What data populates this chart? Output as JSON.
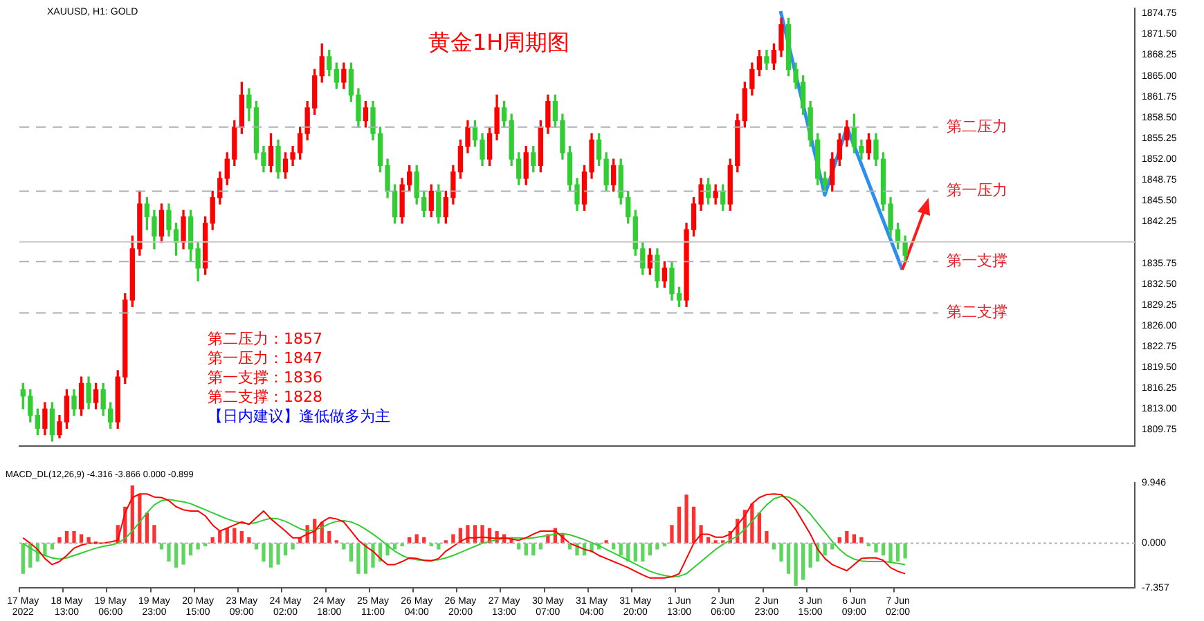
{
  "chart_data": [
    {
      "type": "candlestick",
      "title": "黄金1H周期图",
      "subtitle": "XAUUSD, H1: GOLD",
      "categories": [
        null,
        null,
        null,
        null,
        null,
        null,
        null,
        null,
        null,
        null,
        null,
        null,
        null,
        null,
        null,
        null,
        null,
        null,
        null,
        null,
        null,
        null,
        null,
        null,
        null,
        null,
        null,
        null,
        null,
        null,
        null,
        null,
        null,
        null,
        null,
        null,
        null,
        null,
        null,
        null,
        null,
        null,
        null,
        null,
        null,
        null,
        null,
        null,
        null,
        null,
        null,
        null,
        null,
        null,
        null,
        null,
        null,
        null,
        null,
        null,
        null,
        null,
        null,
        null,
        null,
        null,
        null,
        null,
        null,
        null,
        null,
        null,
        null,
        null,
        null,
        null,
        null,
        null,
        null,
        null,
        null,
        null,
        null,
        null,
        null,
        null,
        null,
        null,
        null,
        null,
        null,
        null,
        null,
        null,
        null,
        null,
        null,
        null,
        null,
        null,
        null,
        null,
        null,
        null,
        null,
        null,
        null,
        null,
        null,
        null,
        null,
        null,
        null,
        null,
        null,
        null,
        null,
        null,
        null,
        null,
        null,
        null,
        null,
        null,
        null,
        null,
        null,
        null,
        null,
        null,
        null,
        null,
        null,
        null,
        null,
        null,
        null,
        null,
        null,
        null,
        null,
        null,
        null,
        null,
        null,
        null,
        null,
        null,
        null,
        null,
        null,
        null,
        null
      ],
      "ohlc": [
        [
          1816,
          1817,
          1813,
          1815
        ],
        [
          1815,
          1816,
          1811,
          1812
        ],
        [
          1812,
          1813,
          1809,
          1810
        ],
        [
          1810,
          1814,
          1809,
          1813
        ],
        [
          1813,
          1814,
          1808,
          1809
        ],
        [
          1809,
          1812,
          1808.5,
          1811
        ],
        [
          1811,
          1816,
          1810,
          1815
        ],
        [
          1815,
          1816,
          1812,
          1813
        ],
        [
          1813,
          1818,
          1812,
          1817
        ],
        [
          1817,
          1818,
          1813,
          1814
        ],
        [
          1814,
          1817,
          1813,
          1816
        ],
        [
          1816,
          1817,
          1812,
          1813
        ],
        [
          1813,
          1814,
          1810,
          1811
        ],
        [
          1811,
          1819,
          1810,
          1818
        ],
        [
          1818,
          1831,
          1817,
          1830
        ],
        [
          1830,
          1840,
          1829,
          1838
        ],
        [
          1838,
          1847,
          1837,
          1845
        ],
        [
          1845,
          1846,
          1841,
          1843
        ],
        [
          1843,
          1844,
          1838,
          1840
        ],
        [
          1840,
          1845,
          1839,
          1844
        ],
        [
          1844,
          1845,
          1840,
          1841
        ],
        [
          1841,
          1842,
          1837,
          1839
        ],
        [
          1839,
          1844,
          1838,
          1843
        ],
        [
          1843,
          1844,
          1836,
          1838
        ],
        [
          1838,
          1839,
          1833,
          1835
        ],
        [
          1835,
          1843,
          1834,
          1842
        ],
        [
          1842,
          1847,
          1841,
          1846
        ],
        [
          1846,
          1850,
          1845,
          1849
        ],
        [
          1849,
          1853,
          1848,
          1852
        ],
        [
          1852,
          1858,
          1851,
          1857
        ],
        [
          1857,
          1864,
          1856,
          1862
        ],
        [
          1862,
          1863,
          1858,
          1860
        ],
        [
          1860,
          1861,
          1852,
          1853
        ],
        [
          1853,
          1854,
          1850,
          1851
        ],
        [
          1851,
          1856,
          1850,
          1854
        ],
        [
          1854,
          1855,
          1849,
          1850
        ],
        [
          1850,
          1853,
          1849,
          1852
        ],
        [
          1852,
          1854,
          1851,
          1853
        ],
        [
          1853,
          1857,
          1852,
          1856
        ],
        [
          1856,
          1861,
          1855,
          1860
        ],
        [
          1860,
          1866,
          1859,
          1865
        ],
        [
          1865,
          1870,
          1864,
          1868
        ],
        [
          1868,
          1869,
          1865,
          1866
        ],
        [
          1866,
          1867,
          1863,
          1864
        ],
        [
          1864,
          1867,
          1863,
          1866
        ],
        [
          1866,
          1867,
          1861,
          1862
        ],
        [
          1862,
          1863,
          1857,
          1858
        ],
        [
          1858,
          1861,
          1857,
          1860
        ],
        [
          1860,
          1861,
          1855,
          1856
        ],
        [
          1856,
          1857,
          1850,
          1851
        ],
        [
          1851,
          1852,
          1846,
          1847
        ],
        [
          1847,
          1848,
          1842,
          1843
        ],
        [
          1843,
          1849,
          1842,
          1848
        ],
        [
          1848,
          1851,
          1847,
          1850
        ],
        [
          1850,
          1851,
          1845,
          1846
        ],
        [
          1846,
          1847,
          1843,
          1844
        ],
        [
          1844,
          1848,
          1843,
          1847
        ],
        [
          1847,
          1848,
          1842,
          1843
        ],
        [
          1843,
          1847,
          1842,
          1846
        ],
        [
          1846,
          1851,
          1845,
          1850
        ],
        [
          1850,
          1855,
          1849,
          1854
        ],
        [
          1854,
          1858,
          1853,
          1857
        ],
        [
          1857,
          1858,
          1854,
          1855
        ],
        [
          1855,
          1856,
          1851,
          1852
        ],
        [
          1852,
          1857,
          1851,
          1856
        ],
        [
          1856,
          1862,
          1855,
          1860
        ],
        [
          1860,
          1861,
          1857,
          1858
        ],
        [
          1858,
          1859,
          1851,
          1852
        ],
        [
          1852,
          1853,
          1848,
          1849
        ],
        [
          1849,
          1854,
          1848,
          1853
        ],
        [
          1853,
          1854,
          1850,
          1851
        ],
        [
          1851,
          1858,
          1850,
          1857
        ],
        [
          1857,
          1862,
          1856,
          1861
        ],
        [
          1861,
          1862,
          1857,
          1858
        ],
        [
          1858,
          1859,
          1852,
          1853
        ],
        [
          1853,
          1854,
          1847,
          1848
        ],
        [
          1848,
          1849,
          1844,
          1845
        ],
        [
          1845,
          1851,
          1844,
          1850
        ],
        [
          1850,
          1856,
          1849,
          1855
        ],
        [
          1855,
          1856,
          1851,
          1852
        ],
        [
          1852,
          1853,
          1847,
          1848
        ],
        [
          1848,
          1852,
          1847,
          1851
        ],
        [
          1851,
          1852,
          1845,
          1846
        ],
        [
          1846,
          1847,
          1842,
          1843
        ],
        [
          1843,
          1844,
          1837,
          1838
        ],
        [
          1838,
          1839,
          1834,
          1835
        ],
        [
          1835,
          1838,
          1834,
          1837
        ],
        [
          1837,
          1838,
          1832,
          1833
        ],
        [
          1833,
          1836,
          1832,
          1835
        ],
        [
          1835,
          1836,
          1830,
          1831
        ],
        [
          1831,
          1832,
          1829,
          1830
        ],
        [
          1830,
          1842,
          1829,
          1841
        ],
        [
          1841,
          1846,
          1840,
          1845
        ],
        [
          1845,
          1849,
          1844,
          1848
        ],
        [
          1848,
          1849,
          1845,
          1846
        ],
        [
          1846,
          1848,
          1845,
          1847
        ],
        [
          1847,
          1848,
          1844,
          1845
        ],
        [
          1845,
          1852,
          1844,
          1851
        ],
        [
          1851,
          1859,
          1850,
          1858
        ],
        [
          1858,
          1864,
          1857,
          1863
        ],
        [
          1863,
          1867,
          1862,
          1866
        ],
        [
          1866,
          1869,
          1865,
          1868
        ],
        [
          1868,
          1869,
          1866,
          1867
        ],
        [
          1867,
          1870,
          1866,
          1869
        ],
        [
          1869,
          1874,
          1868,
          1873
        ],
        [
          1873,
          1874,
          1865,
          1866
        ],
        [
          1866,
          1867,
          1863,
          1864
        ],
        [
          1864,
          1865,
          1859,
          1860
        ],
        [
          1860,
          1861,
          1854,
          1855
        ],
        [
          1855,
          1856,
          1848,
          1849
        ],
        [
          1849,
          1850,
          1847,
          1848
        ],
        [
          1848,
          1853,
          1847,
          1852
        ],
        [
          1852,
          1856,
          1851,
          1855
        ],
        [
          1855,
          1858,
          1854,
          1857
        ],
        [
          1857,
          1859,
          1853,
          1854
        ],
        [
          1854,
          1855,
          1852,
          1853
        ],
        [
          1853,
          1856,
          1852,
          1855
        ],
        [
          1855,
          1856,
          1851,
          1852
        ],
        [
          1852,
          1853,
          1844,
          1845
        ],
        [
          1845,
          1846,
          1840,
          1841
        ],
        [
          1841,
          1842,
          1838,
          1839
        ],
        [
          1839,
          1840,
          1836,
          1837
        ],
        null,
        null,
        null,
        null,
        null,
        null,
        null,
        null,
        null,
        null,
        null,
        null,
        null,
        null,
        null,
        null,
        null,
        null,
        null,
        null,
        null,
        null,
        null,
        null,
        null,
        null,
        null,
        null,
        null,
        null,
        null
      ],
      "colors": [
        "#32cd32",
        "#32cd32",
        "#32cd32",
        "#ff0000",
        "#32cd32",
        "#ff0000",
        "#ff0000",
        "#32cd32",
        "#ff0000",
        "#32cd32",
        "#ff0000",
        "#32cd32",
        "#32cd32",
        "#ff0000",
        "#ff0000",
        "#ff0000",
        "#ff0000",
        "#32cd32",
        "#32cd32",
        "#ff0000",
        "#32cd32",
        "#32cd32",
        "#ff0000",
        "#32cd32",
        "#32cd32",
        "#ff0000",
        "#ff0000",
        "#ff0000",
        "#ff0000",
        "#ff0000",
        "#ff0000",
        "#32cd32",
        "#32cd32",
        "#32cd32",
        "#ff0000",
        "#32cd32",
        "#ff0000",
        "#ff0000",
        "#ff0000",
        "#ff0000",
        "#ff0000",
        "#ff0000",
        "#32cd32",
        "#32cd32",
        "#ff0000",
        "#32cd32",
        "#32cd32",
        "#ff0000",
        "#32cd32",
        "#32cd32",
        "#32cd32",
        "#32cd32",
        "#ff0000",
        "#ff0000",
        "#32cd32",
        "#32cd32",
        "#ff0000",
        "#32cd32",
        "#ff0000",
        "#ff0000",
        "#ff0000",
        "#ff0000",
        "#32cd32",
        "#32cd32",
        "#ff0000",
        "#ff0000",
        "#32cd32",
        "#32cd32",
        "#32cd32",
        "#ff0000",
        "#32cd32",
        "#ff0000",
        "#ff0000",
        "#32cd32",
        "#32cd32",
        "#32cd32",
        "#32cd32",
        "#ff0000",
        "#ff0000",
        "#32cd32",
        "#32cd32",
        "#ff0000",
        "#32cd32",
        "#32cd32",
        "#32cd32",
        "#32cd32",
        "#ff0000",
        "#32cd32",
        "#ff0000",
        "#32cd32",
        "#32cd32",
        "#ff0000",
        "#ff0000",
        "#ff0000",
        "#32cd32",
        "#ff0000",
        "#32cd32",
        "#ff0000",
        "#ff0000",
        "#ff0000",
        "#ff0000",
        "#ff0000",
        "#32cd32",
        "#ff0000",
        "#ff0000",
        "#32cd32",
        "#32cd32",
        "#32cd32",
        "#32cd32",
        "#32cd32",
        "#32cd32",
        "#ff0000",
        "#ff0000",
        "#ff0000",
        "#32cd32",
        "#32cd32",
        "#ff0000",
        "#32cd32",
        "#32cd32",
        "#32cd32",
        "#32cd32",
        "#32cd32",
        null,
        null,
        null,
        null,
        null,
        null,
        null,
        null,
        null,
        null,
        null,
        null,
        null,
        null,
        null,
        null,
        null,
        null,
        null,
        null,
        null,
        null,
        null,
        null,
        null,
        null,
        null,
        null,
        null,
        null,
        null
      ],
      "ylim": [
        1807.2,
        1875.5
      ],
      "yticks": [
        1874.75,
        {
          "value": 1871.5,
          "label": "1871.50"
        },
        1868.25,
        {
          "value": 1865,
          "label": "1865.00"
        },
        1861.75,
        {
          "value": 1858.5,
          "label": "1858.50"
        },
        1855.25,
        {
          "value": 1852,
          "label": "1852.00"
        },
        1848.75,
        {
          "value": 1845.5,
          "label": "1845.50"
        },
        1842.25,
        1835.75,
        {
          "value": 1832.5,
          "label": "1832.50"
        },
        1829.25,
        {
          "value": 1826,
          "label": "1826.00"
        },
        1822.75,
        {
          "value": 1819.5,
          "label": "1819.50"
        },
        1816.25,
        {
          "value": 1813,
          "label": "1813.00"
        },
        1809.75
      ],
      "ref_lines": [
        {
          "axis": "y",
          "value": 1857,
          "label": "第二压力",
          "color": "#a8b0bc",
          "line_style": "dashed"
        },
        {
          "axis": "y",
          "value": 1847,
          "label": "第一压力",
          "color": "#a8b0bc",
          "line_style": "dashed"
        },
        {
          "axis": "y",
          "value": 1836,
          "label": "第一支撑",
          "color": "#a8b0bc",
          "line_style": "dashed"
        },
        {
          "axis": "y",
          "value": 1828,
          "label": "第二支撑",
          "color": "#a8b0bc",
          "line_style": "dashed"
        },
        {
          "axis": "y",
          "value": 1839.1,
          "color": "#c8c8c8",
          "line_style": "solid"
        }
      ],
      "annotations": [
        "第二压力：1857",
        "第一压力：1847",
        "第一支撑：1836",
        "第二支撑：1828",
        "【日内建议】逢低做多为主"
      ]
    },
    {
      "type": "bar",
      "title": "MACD_DL(12,26,9) -4.316 -3.866 0.000 -0.899",
      "stacked": true,
      "categories": [
        "17 May 2022",
        null,
        null,
        null,
        null,
        null,
        "18 May 13:00",
        null,
        null,
        null,
        null,
        null,
        "19 May 06:00",
        null,
        null,
        null,
        null,
        null,
        "19 May 23:00",
        null,
        null,
        null,
        null,
        null,
        "20 May 15:00",
        null,
        null,
        null,
        null,
        null,
        "23 May 09:00",
        null,
        null,
        null,
        null,
        null,
        "24 May 02:00",
        null,
        null,
        null,
        null,
        null,
        "24 May 18:00",
        null,
        null,
        null,
        null,
        null,
        "25 May 11:00",
        null,
        null,
        null,
        null,
        null,
        "26 May 04:00",
        null,
        null,
        null,
        null,
        null,
        "26 May 20:00",
        null,
        null,
        null,
        null,
        null,
        "27 May 13:00",
        null,
        null,
        null,
        null,
        null,
        "30 May 07:00",
        null,
        null,
        null,
        null,
        null,
        "31 May 04:00",
        null,
        null,
        null,
        null,
        null,
        "31 May 20:00",
        null,
        null,
        null,
        null,
        null,
        "1 Jun 13:00",
        null,
        null,
        null,
        null,
        null,
        "2 Jun 06:00",
        null,
        null,
        null,
        null,
        null,
        "2 Jun 23:00",
        null,
        null,
        null,
        null,
        null,
        "3 Jun 15:00",
        null,
        null,
        null,
        null,
        null,
        "6 Jun 09:00",
        null,
        null,
        null,
        null,
        null,
        "7 Jun 02:00",
        null,
        null,
        null,
        null,
        null,
        null,
        null,
        null,
        null,
        null,
        null,
        null,
        null,
        null,
        null,
        null,
        null,
        null,
        null,
        null,
        null,
        null,
        null,
        null,
        null,
        null,
        null,
        null,
        null,
        null,
        null,
        null
      ],
      "series": [
        {
          "color": "#ff3030",
          "values": [
            null,
            null,
            null,
            null,
            null,
            1,
            2,
            2,
            1.5,
            1,
            0.3,
            null,
            null,
            3,
            6,
            9.5,
            8,
            5,
            3,
            null,
            null,
            null,
            null,
            null,
            null,
            null,
            1,
            2,
            2.5,
            2.5,
            2,
            1,
            null,
            null,
            null,
            null,
            null,
            null,
            1,
            3,
            4,
            3.5,
            2,
            0.5,
            null,
            null,
            null,
            null,
            null,
            null,
            null,
            null,
            null,
            1,
            1.5,
            1,
            null,
            null,
            0.5,
            1.5,
            2.5,
            3,
            3,
            3,
            2.5,
            2,
            1.5,
            1,
            null,
            null,
            null,
            null,
            1.5,
            2.5,
            1.5,
            null,
            null,
            null,
            null,
            null,
            0.5,
            null,
            null,
            null,
            null,
            null,
            null,
            null,
            null,
            3,
            6,
            8,
            6,
            3,
            1,
            0.5,
            0.5,
            2,
            4,
            5.5,
            6.5,
            5,
            2,
            null,
            null,
            null,
            null,
            null,
            null,
            null,
            null,
            null,
            1,
            2,
            1.5,
            1,
            null,
            null,
            null,
            null,
            null,
            null,
            null,
            null,
            null,
            null,
            null,
            null,
            null,
            null,
            null,
            null,
            null,
            null,
            null,
            null,
            null,
            null,
            null,
            null,
            null,
            null,
            null,
            null,
            null,
            null,
            null,
            null,
            null,
            null,
            null,
            null,
            null
          ]
        },
        {
          "color": "#5cd65c",
          "values": [
            -5,
            -4,
            -3,
            -2,
            -1,
            null,
            null,
            null,
            null,
            null,
            null,
            null,
            null,
            null,
            null,
            null,
            null,
            null,
            null,
            -1,
            -3,
            -4,
            -3.5,
            -2,
            -1,
            -0.5,
            null,
            null,
            null,
            null,
            null,
            null,
            -1,
            -3,
            -4,
            -3.5,
            -2,
            -1,
            null,
            null,
            null,
            null,
            null,
            null,
            -1,
            -3,
            -5,
            -5,
            -4,
            -3,
            -2,
            -1,
            -0.5,
            null,
            null,
            null,
            -0.5,
            -1,
            null,
            null,
            null,
            null,
            null,
            null,
            null,
            null,
            null,
            null,
            -1,
            -2,
            -2,
            -1,
            null,
            null,
            null,
            -1,
            -2,
            -2,
            -1.5,
            -1,
            null,
            -1,
            -2,
            -3,
            -3,
            -3,
            -2,
            -1,
            -0.5,
            null,
            null,
            null,
            null,
            null,
            null,
            null,
            null,
            null,
            null,
            null,
            null,
            null,
            null,
            -1,
            -3,
            -5,
            -7,
            -6,
            -4,
            -3,
            -2,
            -1,
            null,
            null,
            null,
            null,
            -0.5,
            -1.5,
            -2,
            -3,
            -3,
            -2.5,
            null,
            null,
            null,
            null,
            null,
            null,
            null,
            null,
            null,
            null,
            null,
            null,
            null,
            null,
            null,
            null,
            null,
            null,
            null,
            null,
            null,
            null,
            null,
            null,
            null,
            null,
            null,
            null,
            null,
            null,
            null
          ]
        },
        {
          "type": "line",
          "color": "#ff0000",
          "values": [
            0.9,
            0,
            -1,
            -2.5,
            -3.5,
            -3,
            -2,
            -0.8,
            -0.3,
            0,
            0,
            0,
            0.2,
            0.5,
            5,
            7.5,
            8.1,
            8.1,
            7.6,
            7.5,
            7,
            6,
            5.5,
            5.3,
            5.3,
            4.5,
            3,
            2,
            2.5,
            3,
            3.5,
            3.1,
            4.2,
            5.3,
            4,
            3,
            2,
            0.9,
            0.9,
            1.5,
            2,
            3.5,
            4.2,
            4,
            3.5,
            2,
            0.5,
            -0.5,
            -1.3,
            -2.5,
            -3.5,
            -3.5,
            -3,
            -2.4,
            -2.5,
            -2.8,
            -2.9,
            -2.5,
            -1.3,
            -0.5,
            0.3,
            0.9,
            0.9,
            1,
            0.9,
            0.8,
            0.9,
            0.7,
            0.5,
            0.9,
            1.5,
            2,
            2,
            2,
            1,
            0,
            -0.5,
            -1,
            -1.3,
            -2,
            -2.5,
            -3,
            -3.5,
            -4,
            -4.6,
            -5.2,
            -5.7,
            -5.7,
            -5.7,
            -5.5,
            -5,
            -2.5,
            0,
            1.5,
            1.5,
            1,
            1,
            1.5,
            3,
            4.5,
            6.5,
            7.5,
            8,
            8.1,
            8,
            7,
            5.5,
            3.5,
            1.5,
            -1,
            -2.5,
            -3.5,
            -4,
            -4.5,
            -3.5,
            -2.5,
            -2.4,
            -2.4,
            -2.8,
            -4,
            -4.6,
            -5,
            null,
            null,
            null,
            null,
            null,
            null,
            null,
            null,
            null,
            null,
            null,
            null,
            null,
            null,
            null,
            null,
            null,
            null,
            null,
            null,
            null,
            null,
            null,
            null,
            null,
            null,
            null,
            null,
            null,
            null,
            null
          ]
        },
        {
          "type": "line",
          "color": "#32cd32",
          "values": [
            0,
            -0.8,
            -1.5,
            -2,
            -2.4,
            -2.6,
            -2.4,
            -2,
            -1.6,
            -1.2,
            -0.8,
            -0.5,
            -0.3,
            0,
            0.8,
            2,
            3.5,
            5,
            6.3,
            7,
            7.2,
            7,
            6.8,
            6.5,
            6,
            5.5,
            5,
            4.5,
            4,
            3.6,
            3.3,
            3.2,
            3.4,
            3.8,
            4.1,
            4,
            3.6,
            3,
            2.4,
            2,
            2.2,
            2.6,
            3.2,
            3.6,
            3.7,
            3.5,
            3,
            2.3,
            1.5,
            0.6,
            -0.4,
            -1.3,
            -2,
            -2.5,
            -2.7,
            -2.8,
            -2.8,
            -2.7,
            -2.4,
            -2,
            -1.5,
            -1,
            -0.5,
            0,
            0.3,
            0.6,
            0.8,
            0.9,
            0.9,
            0.8,
            0.9,
            1.1,
            1.3,
            1.5,
            1.6,
            1.4,
            1,
            0.6,
            0.1,
            -0.4,
            -1,
            -1.6,
            -2.2,
            -2.8,
            -3.4,
            -4,
            -4.6,
            -5,
            -5.3,
            -5.5,
            -5.4,
            -5,
            -4,
            -3,
            -2,
            -1,
            -0.2,
            0.5,
            1.2,
            2.3,
            3.6,
            5,
            6.3,
            7.3,
            7.7,
            7.6,
            7,
            6,
            4.8,
            3.3,
            1.8,
            0.3,
            -1,
            -2,
            -2.6,
            -2.9,
            -3,
            -3,
            -3,
            -3.1,
            -3.3,
            -3.5,
            null,
            null,
            null,
            null,
            null,
            null,
            null,
            null,
            null,
            null,
            null,
            null,
            null,
            null,
            null,
            null,
            null,
            null,
            null,
            null,
            null,
            null,
            null,
            null,
            null,
            null,
            null,
            null,
            null,
            null,
            null
          ]
        }
      ],
      "ylim": [
        -7.357,
        9.946
      ],
      "yticks": [
        {
          "value": 9.946,
          "label": "9.946"
        },
        {
          "value": 0,
          "label": "0.000"
        },
        {
          "value": -7.357,
          "label": "-7.357"
        }
      ],
      "ref_lines": [
        {
          "axis": "y",
          "value": 0,
          "color": "#b0b0b0",
          "line_style": "dotted"
        }
      ]
    }
  ]
}
